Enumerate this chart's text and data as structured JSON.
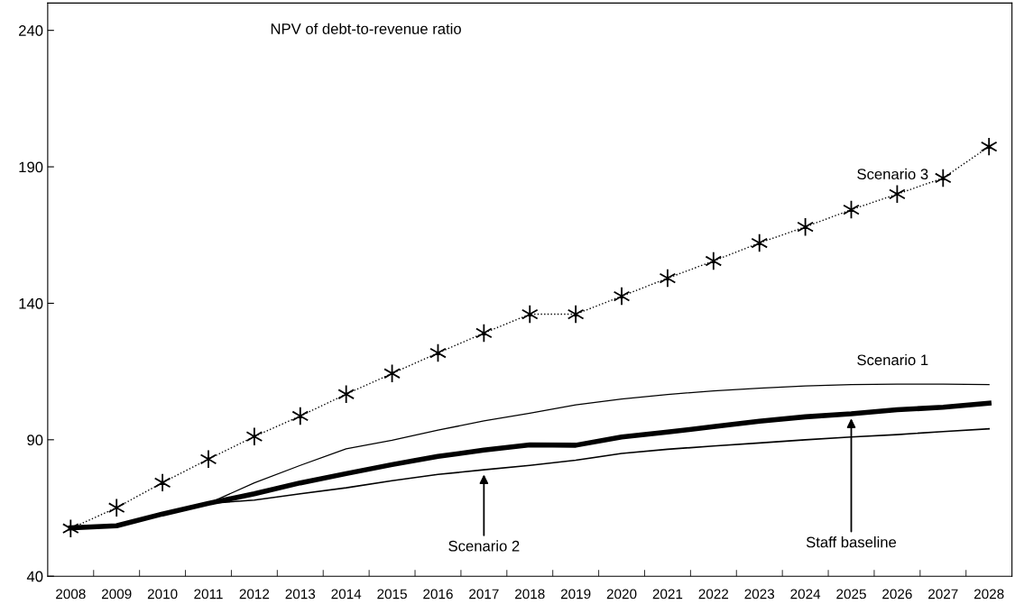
{
  "chart_data": {
    "type": "line",
    "title": "NPV of debt-to-revenue ratio",
    "categories": [
      "2008",
      "2009",
      "2010",
      "2011",
      "2012",
      "2013",
      "2014",
      "2015",
      "2016",
      "2017",
      "2018",
      "2019",
      "2020",
      "2021",
      "2022",
      "2023",
      "2024",
      "2025",
      "2026",
      "2027",
      "2028"
    ],
    "series": [
      {
        "name": "Staff baseline",
        "color": "#000000",
        "line_style": "solid",
        "marker": "none",
        "values": [
          57.7,
          58.5,
          62.8,
          66.7,
          70.2,
          74.2,
          77.6,
          80.9,
          83.9,
          86.2,
          88.1,
          88.0,
          91.0,
          92.8,
          94.8,
          96.8,
          98.4,
          99.5,
          101.0,
          101.9,
          103.4
        ]
      },
      {
        "name": "Scenario 1",
        "color": "#000000",
        "line_style": "solid",
        "marker": "none",
        "values": [
          57.7,
          58.5,
          62.8,
          66.7,
          74.2,
          80.6,
          86.7,
          89.8,
          93.5,
          96.9,
          99.7,
          102.8,
          104.9,
          106.6,
          107.9,
          108.9,
          109.7,
          110.2,
          110.4,
          110.4,
          110.2
        ]
      },
      {
        "name": "Scenario 2",
        "color": "#000000",
        "line_style": "solid",
        "marker": "none",
        "values": [
          57.7,
          58.5,
          62.8,
          66.7,
          67.9,
          70.2,
          72.4,
          75.0,
          77.3,
          79.0,
          80.6,
          82.5,
          85.0,
          86.5,
          87.7,
          88.8,
          90.0,
          91.0,
          91.9,
          93.0,
          94.0
        ]
      },
      {
        "name": "Scenario 3",
        "color": "#000000",
        "line_style": "dotted",
        "marker": "cross",
        "values": [
          57.5,
          65.1,
          74.3,
          82.9,
          91.2,
          98.7,
          106.7,
          114.3,
          121.8,
          129.1,
          136.0,
          136.0,
          142.6,
          149.2,
          155.5,
          162.1,
          168.0,
          174.3,
          180.0,
          185.9,
          197.4
        ]
      }
    ],
    "ylim": [
      40,
      250
    ],
    "yticks": [
      40,
      90,
      140,
      190,
      240
    ],
    "grid": false,
    "legend": false
  }
}
